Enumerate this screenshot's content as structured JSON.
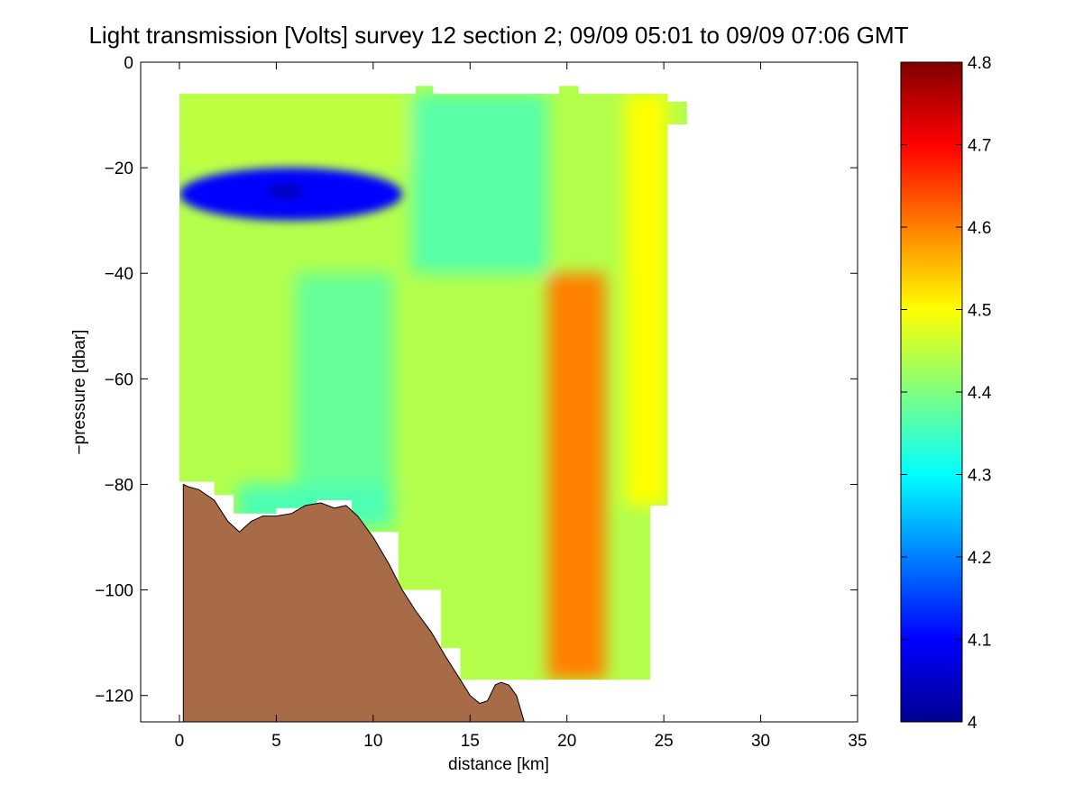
{
  "chart_data": {
    "type": "heatmap",
    "title": "Light transmission [Volts] survey 12 section 2; 09/09 05:01 to 09/09 07:06 GMT",
    "xlabel": "distance [km]",
    "ylabel": "−pressure [dbar]",
    "xlim": [
      -2,
      35
    ],
    "ylim": [
      -125,
      0
    ],
    "xticks": [
      "0",
      "5",
      "10",
      "15",
      "20",
      "25",
      "30",
      "35"
    ],
    "xtick_values": [
      0,
      5,
      10,
      15,
      20,
      25,
      30,
      35
    ],
    "yticks": [
      "0",
      "−20",
      "−40",
      "−60",
      "−80",
      "−100",
      "−120"
    ],
    "ytick_values": [
      0,
      -20,
      -40,
      -60,
      -80,
      -100,
      -120
    ],
    "colorbar": {
      "range": [
        4.0,
        4.8
      ],
      "ticks": [
        "4",
        "4.1",
        "4.2",
        "4.3",
        "4.4",
        "4.5",
        "4.6",
        "4.7",
        "4.8"
      ],
      "tick_values": [
        4.0,
        4.1,
        4.2,
        4.3,
        4.4,
        4.5,
        4.6,
        4.7,
        4.8
      ],
      "colormap": "jet"
    },
    "data_extent": {
      "x_range": [
        0,
        25.2
      ],
      "y_range": [
        -117,
        -6
      ]
    },
    "approx_field_regions": [
      {
        "description": "surface layer west",
        "x": [
          0,
          12
        ],
        "y": [
          -20,
          -6
        ],
        "value": 4.45
      },
      {
        "description": "low-transmission band",
        "x": [
          0,
          11.5
        ],
        "y": [
          -30,
          -20
        ],
        "value": 4.1
      },
      {
        "description": "minimum core",
        "x": [
          4.5,
          6.5
        ],
        "y": [
          -26,
          -23
        ],
        "value": 4.05
      },
      {
        "description": "mid water west",
        "x": [
          6,
          11
        ],
        "y": [
          -80,
          -40
        ],
        "value": 4.38
      },
      {
        "description": "bottom layer near shelf",
        "x": [
          3,
          11
        ],
        "y": [
          -88,
          -80
        ],
        "value": 4.36
      },
      {
        "description": "central column",
        "x": [
          12,
          19
        ],
        "y": [
          -40,
          -6
        ],
        "value": 4.37
      },
      {
        "description": "eastern high-transmission column",
        "x": [
          19,
          22
        ],
        "y": [
          -117,
          -40
        ],
        "value": 4.6
      },
      {
        "description": "eastern margin",
        "x": [
          23,
          25.2
        ],
        "y": [
          -84,
          -6
        ],
        "value": 4.5
      }
    ],
    "bathymetry": {
      "fill_color": "#a86b47",
      "x": [
        0.2,
        0.5,
        1.0,
        1.8,
        2.5,
        3.1,
        3.7,
        4.3,
        5.0,
        5.8,
        6.5,
        7.3,
        8.0,
        8.6,
        9.2,
        10.0,
        10.8,
        11.5,
        12.2,
        13.0,
        13.8,
        14.5,
        15.0,
        15.5,
        15.9,
        16.3,
        16.6,
        17.0,
        17.4,
        17.8
      ],
      "depth": [
        -80,
        -80.5,
        -81,
        -83,
        -87,
        -89,
        -87,
        -86,
        -86,
        -85.5,
        -84,
        -83.5,
        -84.5,
        -84,
        -86,
        -90,
        -95,
        -100,
        -104,
        -108,
        -113,
        -117,
        -120,
        -121.5,
        -121,
        -118,
        -117.5,
        -118,
        -120,
        -125
      ]
    }
  }
}
